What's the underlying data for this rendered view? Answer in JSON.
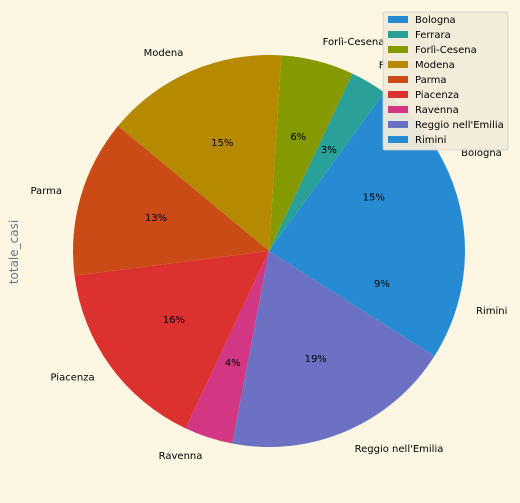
{
  "chart_data": {
    "type": "pie",
    "ylabel": "totale_casi",
    "legend_position": "upper-right",
    "categories": [
      "Bologna",
      "Ferrara",
      "Forlì-Cesena",
      "Modena",
      "Parma",
      "Piacenza",
      "Ravenna",
      "Reggio nell'Emilia",
      "Rimini"
    ],
    "values": [
      15,
      3,
      6,
      15,
      13,
      16,
      4,
      19,
      9
    ],
    "percent_labels": [
      "15%",
      "3%",
      "6%",
      "15%",
      "13%",
      "16%",
      "4%",
      "19%",
      "9%"
    ],
    "colors": [
      "#268bd2",
      "#2aa198",
      "#859900",
      "#b58900",
      "#cb4b16",
      "#dc322f",
      "#d33682",
      "#6c71c4",
      "#268bd2"
    ],
    "start_angle_deg": 0,
    "direction": "counterclockwise"
  }
}
